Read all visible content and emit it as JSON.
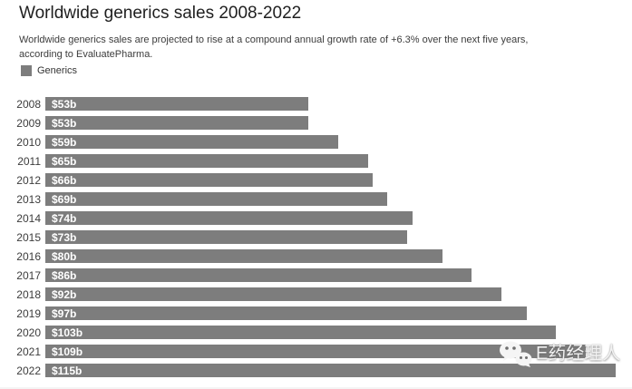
{
  "header": {
    "title": "Worldwide generics sales 2008-2022",
    "subtitle": "Worldwide generics sales are projected to rise at a compound annual growth rate of +6.3% over the next five years, according to EvaluatePharma."
  },
  "legend": {
    "label": "Generics",
    "color": "#7d7d7d",
    "position": "top-left"
  },
  "chart_data": {
    "type": "bar",
    "orientation": "horizontal",
    "title": "Worldwide generics sales 2008-2022",
    "series_name": "Generics",
    "categories": [
      "2008",
      "2009",
      "2010",
      "2011",
      "2012",
      "2013",
      "2014",
      "2015",
      "2016",
      "2017",
      "2018",
      "2019",
      "2020",
      "2021",
      "2022"
    ],
    "values": [
      53,
      53,
      59,
      65,
      66,
      69,
      74,
      73,
      80,
      86,
      92,
      97,
      103,
      109,
      115
    ],
    "bar_labels": [
      "$53b",
      "$53b",
      "$59b",
      "$65b",
      "$66b",
      "$69b",
      "$74b",
      "$73b",
      "$80b",
      "$86b",
      "$92b",
      "$97b",
      "$103b",
      "$109b",
      "$115b"
    ],
    "xlim": [
      0,
      115
    ],
    "grid": false,
    "bar_color": "#7d7d7d",
    "value_label_color": "#ffffff"
  },
  "watermark": {
    "icon": "wechat-icon",
    "text": "E药经理人"
  }
}
